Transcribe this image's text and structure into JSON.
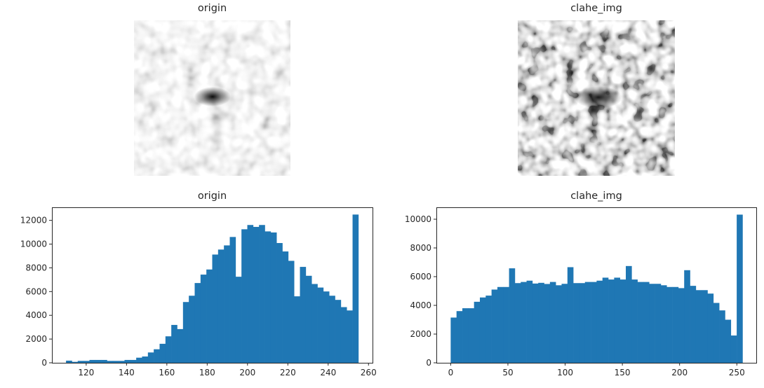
{
  "figure": {
    "panels": [
      {
        "title": "origin",
        "kind": "image"
      },
      {
        "title": "clahe_img",
        "kind": "image"
      },
      {
        "title": "origin",
        "kind": "histogram"
      },
      {
        "title": "clahe_img",
        "kind": "histogram"
      }
    ]
  },
  "colors": {
    "bar": "#1f77b4",
    "axes": "#262626",
    "background": "#ffffff"
  },
  "chart_data": [
    {
      "type": "bar",
      "title": "origin",
      "xlabel": "",
      "ylabel": "",
      "bins": 50,
      "bin_range": [
        110,
        255
      ],
      "xlim": [
        103,
        262
      ],
      "ylim": [
        0,
        13100
      ],
      "xticks": [
        120,
        140,
        160,
        180,
        200,
        220,
        240,
        260
      ],
      "yticks": [
        0,
        2000,
        4000,
        6000,
        8000,
        10000,
        12000
      ],
      "grid": false,
      "values": [
        180,
        80,
        160,
        160,
        240,
        240,
        240,
        160,
        160,
        160,
        240,
        240,
        430,
        530,
        870,
        1140,
        1600,
        2230,
        3190,
        2840,
        5120,
        5650,
        6720,
        7430,
        7860,
        9120,
        9540,
        9890,
        10600,
        7250,
        11250,
        11610,
        11450,
        11610,
        11070,
        10980,
        10090,
        9380,
        8590,
        5600,
        8080,
        7330,
        6640,
        6340,
        6010,
        5650,
        5300,
        4690,
        4410,
        12490
      ]
    },
    {
      "type": "bar",
      "title": "clahe_img",
      "xlabel": "",
      "ylabel": "",
      "bins": 50,
      "bin_range": [
        0,
        255
      ],
      "xlim": [
        -12.5,
        267
      ],
      "ylim": [
        0,
        10830
      ],
      "xticks": [
        0,
        50,
        100,
        150,
        200,
        250
      ],
      "yticks": [
        0,
        2000,
        4000,
        6000,
        8000,
        10000
      ],
      "grid": false,
      "values": [
        3150,
        3600,
        3800,
        3800,
        4250,
        4550,
        4680,
        5100,
        5280,
        5280,
        6580,
        5550,
        5630,
        5720,
        5520,
        5570,
        5490,
        5630,
        5400,
        5500,
        6660,
        5550,
        5550,
        5630,
        5630,
        5720,
        5930,
        5800,
        5930,
        5800,
        6740,
        5800,
        5630,
        5630,
        5500,
        5500,
        5400,
        5280,
        5280,
        5200,
        6450,
        5360,
        5060,
        5060,
        4820,
        4170,
        3650,
        3000,
        1900,
        10320
      ]
    }
  ]
}
